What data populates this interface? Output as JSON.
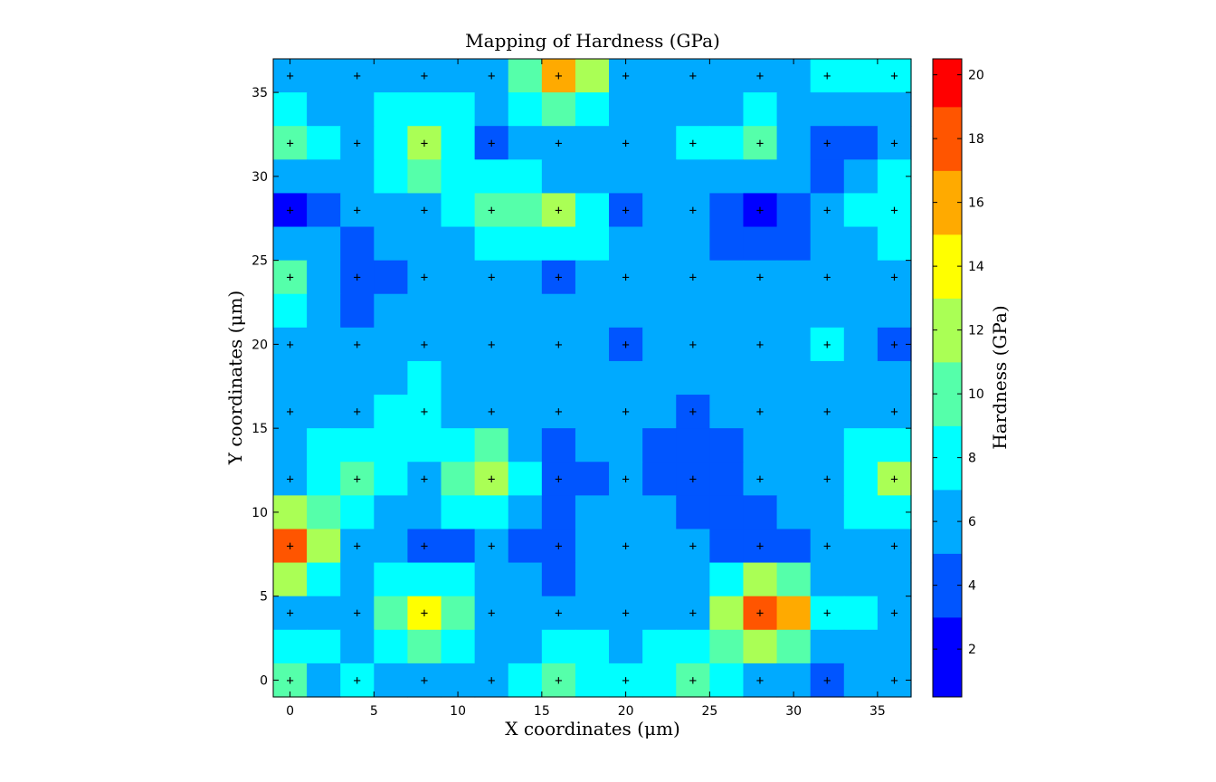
{
  "chart_data": {
    "type": "heatmap",
    "title": "Mapping of Hardness (GPa)",
    "xlabel": "X coordinates (μm)",
    "ylabel": "Y coordinates (μm)",
    "colorbar_label": "Hardness (GPa)",
    "xlim": [
      -1,
      37
    ],
    "ylim": [
      -1,
      37
    ],
    "x_ticks": [
      0,
      5,
      10,
      15,
      20,
      25,
      30,
      35
    ],
    "y_ticks": [
      0,
      5,
      10,
      15,
      20,
      25,
      30,
      35
    ],
    "x_centers": [
      0,
      2,
      4,
      6,
      8,
      10,
      12,
      14,
      16,
      18,
      20,
      22,
      24,
      26,
      28,
      30,
      32,
      34,
      36
    ],
    "y_centers": [
      36,
      34,
      32,
      30,
      28,
      26,
      24,
      22,
      20,
      18,
      16,
      14,
      12,
      10,
      8,
      6,
      4,
      2,
      0
    ],
    "values": [
      [
        6,
        6,
        6,
        6,
        6,
        6,
        6,
        9,
        15,
        11,
        6,
        6,
        6,
        6,
        6,
        6,
        8,
        8,
        8
      ],
      [
        8,
        6,
        6,
        8,
        8,
        8,
        6,
        8,
        10,
        8,
        6,
        6,
        6,
        6,
        8,
        6,
        6,
        6,
        6
      ],
      [
        10,
        8,
        6,
        8,
        12,
        8,
        4,
        6,
        6,
        6,
        6,
        6,
        8,
        8,
        10,
        6,
        4,
        4,
        6
      ],
      [
        6,
        6,
        6,
        8,
        10,
        8,
        8,
        8,
        6,
        6,
        6,
        6,
        6,
        6,
        6,
        6,
        4,
        6,
        8
      ],
      [
        2,
        4,
        6,
        6,
        6,
        8,
        10,
        10,
        12,
        8,
        4,
        6,
        6,
        4,
        2,
        4,
        6,
        8,
        8
      ],
      [
        6,
        6,
        4,
        6,
        6,
        6,
        8,
        8,
        8,
        8,
        6,
        6,
        6,
        4,
        4,
        4,
        6,
        6,
        8
      ],
      [
        10,
        6,
        4,
        4,
        6,
        6,
        6,
        6,
        4,
        6,
        6,
        6,
        6,
        6,
        6,
        6,
        6,
        6,
        6
      ],
      [
        8,
        6,
        4,
        6,
        6,
        6,
        6,
        6,
        6,
        6,
        6,
        6,
        6,
        6,
        6,
        6,
        6,
        6,
        6
      ],
      [
        6,
        6,
        6,
        6,
        6,
        6,
        6,
        6,
        6,
        6,
        4,
        6,
        6,
        6,
        6,
        6,
        8,
        6,
        4
      ],
      [
        6,
        6,
        6,
        6,
        8,
        6,
        6,
        6,
        6,
        6,
        6,
        6,
        6,
        6,
        6,
        6,
        6,
        6,
        6
      ],
      [
        6,
        6,
        6,
        8,
        8,
        6,
        6,
        6,
        6,
        6,
        6,
        6,
        4,
        6,
        6,
        6,
        6,
        6,
        6
      ],
      [
        6,
        8,
        8,
        8,
        8,
        8,
        10,
        6,
        4,
        6,
        6,
        4,
        4,
        4,
        6,
        6,
        6,
        8,
        8
      ],
      [
        6,
        8,
        10,
        8,
        6,
        10,
        12,
        8,
        4,
        4,
        6,
        4,
        4,
        4,
        6,
        6,
        6,
        8,
        12
      ],
      [
        12,
        10,
        8,
        6,
        6,
        8,
        8,
        6,
        4,
        6,
        6,
        6,
        4,
        4,
        4,
        6,
        6,
        8,
        8
      ],
      [
        18,
        12,
        6,
        6,
        4,
        4,
        6,
        4,
        4,
        6,
        6,
        6,
        6,
        4,
        4,
        4,
        6,
        6,
        6
      ],
      [
        12,
        8,
        6,
        8,
        8,
        8,
        6,
        6,
        4,
        6,
        6,
        6,
        6,
        8,
        12,
        10,
        6,
        6,
        6
      ],
      [
        6,
        6,
        6,
        10,
        13,
        10,
        6,
        6,
        6,
        6,
        6,
        6,
        6,
        12,
        18,
        15,
        8,
        8,
        6
      ],
      [
        8,
        8,
        6,
        8,
        10,
        8,
        6,
        6,
        8,
        8,
        6,
        8,
        8,
        10,
        12,
        10,
        6,
        6,
        6
      ],
      [
        10,
        6,
        8,
        6,
        6,
        6,
        6,
        8,
        10,
        8,
        8,
        8,
        10,
        8,
        6,
        6,
        4,
        6,
        6
      ]
    ],
    "indent_x": [
      0,
      4,
      8,
      12,
      16,
      20,
      24,
      28,
      32,
      36
    ],
    "indent_y": [
      0,
      4,
      8,
      12,
      16,
      20,
      24,
      28,
      32,
      36
    ],
    "colorbar": {
      "min": 0.5,
      "max": 20.5,
      "ticks": [
        2,
        4,
        6,
        8,
        10,
        12,
        14,
        16,
        18,
        20
      ],
      "bands": [
        {
          "from": 0.5,
          "to": 3,
          "color": "#0000ff"
        },
        {
          "from": 3,
          "to": 5,
          "color": "#0055ff"
        },
        {
          "from": 5,
          "to": 7,
          "color": "#00aaff"
        },
        {
          "from": 7,
          "to": 9,
          "color": "#00ffff"
        },
        {
          "from": 9,
          "to": 11,
          "color": "#55ffaa"
        },
        {
          "from": 11,
          "to": 13,
          "color": "#aaff55"
        },
        {
          "from": 13,
          "to": 15,
          "color": "#ffff00"
        },
        {
          "from": 15,
          "to": 17,
          "color": "#ffaa00"
        },
        {
          "from": 17,
          "to": 19,
          "color": "#ff5500"
        },
        {
          "from": 19,
          "to": 20.5,
          "color": "#ff0000"
        }
      ]
    },
    "marker_symbol": "+"
  }
}
